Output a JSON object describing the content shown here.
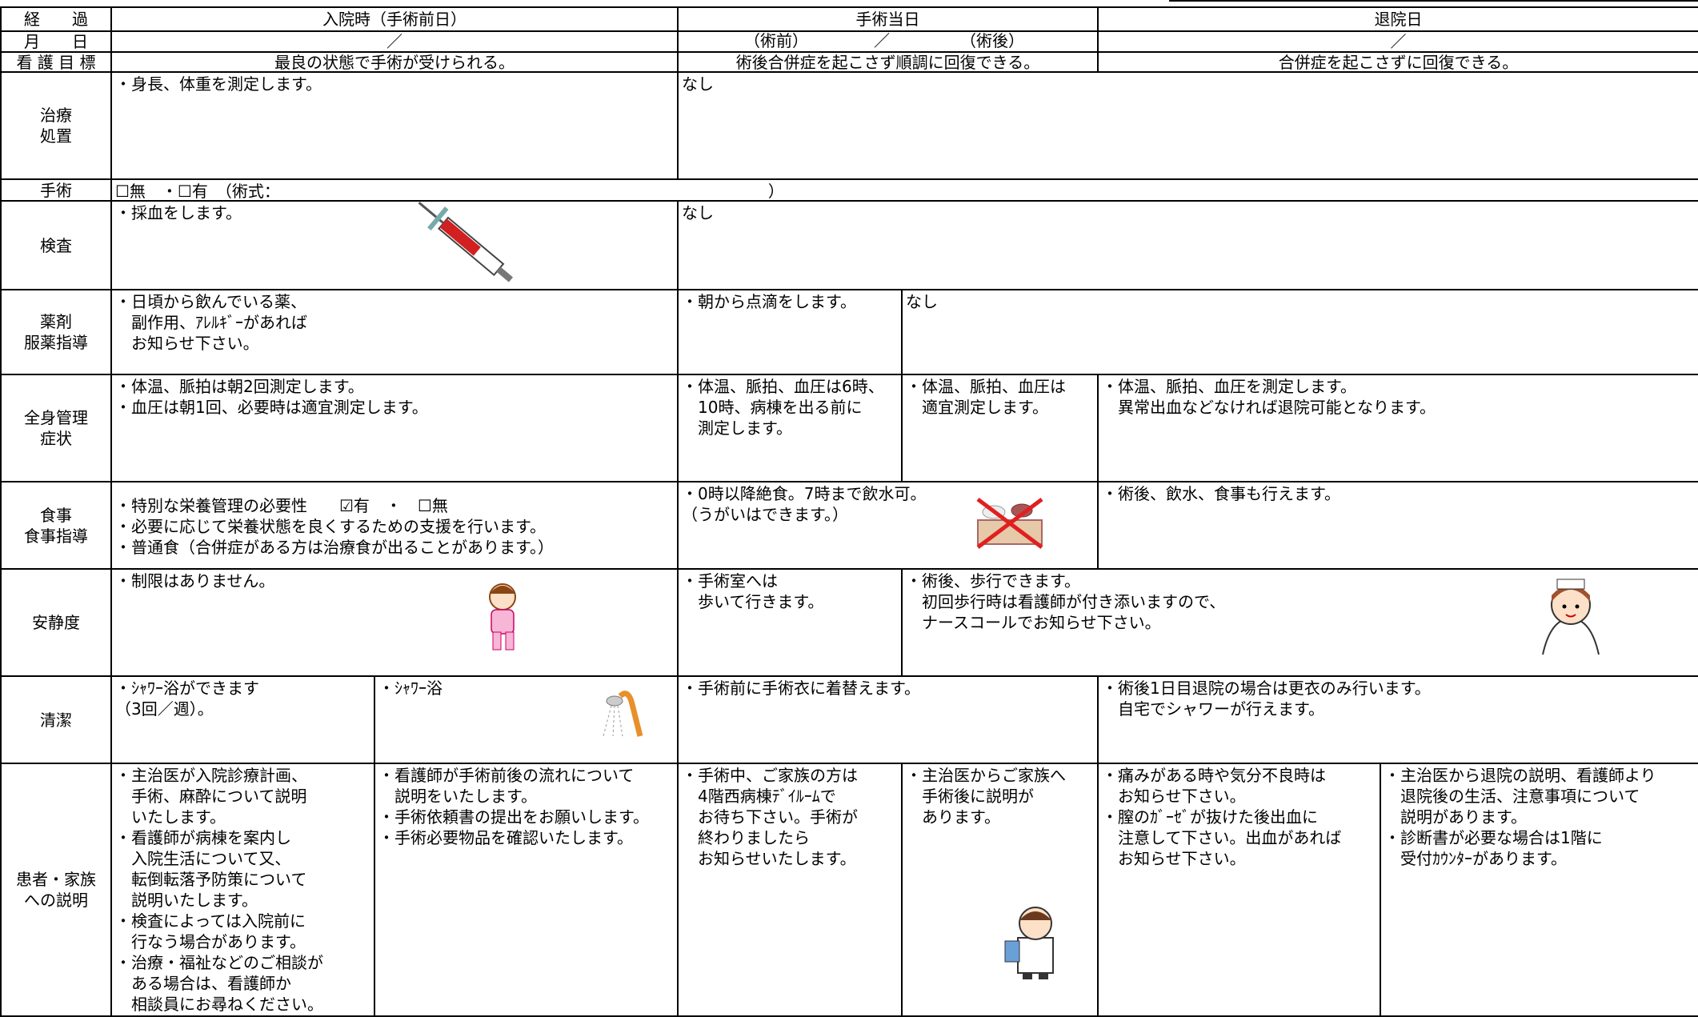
{
  "header": {
    "label": "経　　過",
    "admission": "入院時（手術前日）",
    "surgery_day": "手術当日",
    "discharge": "退院日"
  },
  "date_row": {
    "label": "月　　日",
    "admission": "／",
    "surgery_before": "（術前）",
    "slash": "／",
    "surgery_after": "（術後）",
    "discharge": "／"
  },
  "goal_row": {
    "label": "看 護 目 標",
    "admission": "最良の状態で手術が受けられる。",
    "surgery_day": "術後合併症を起こさず順調に回復できる。",
    "discharge": "合併症を起こさずに回復できる。"
  },
  "rows": [
    {
      "label": "治療\n処置",
      "cells": [
        "・身長、体重を測定します。",
        "なし"
      ]
    },
    {
      "label": "手術",
      "cells": [
        "☐無　・☐有　（術式：　　　　　　　　　　　　　　　　　　　　　　　　　　　　　　　）"
      ]
    },
    {
      "label": "検査",
      "cells": [
        "・採血をします。",
        "なし"
      ]
    },
    {
      "label": "薬剤\n服薬指導",
      "cells": [
        "・日頃から飲んでいる薬、\n　副作用、ｱﾚﾙｷﾞｰがあれば\n　お知らせ下さい。",
        "・朝から点滴をします。",
        "なし"
      ]
    },
    {
      "label": "全身管理\n症状",
      "cells": [
        "・体温、脈拍は朝2回測定します。\n・血圧は朝1回、必要時は適宜測定します。",
        "・体温、脈拍、血圧は6時、\n　10時、病棟を出る前に\n　測定します。",
        "・体温、脈拍、血圧は\n　適宜測定します。",
        "・体温、脈拍、血圧を測定します。\n　異常出血などなければ退院可能となります。"
      ]
    },
    {
      "label": "食事\n食事指導",
      "cells": [
        "・特別な栄養管理の必要性　　☑有　・　☐無\n・必要に応じて栄養状態を良くするための支援を行います。\n・普通食（合併症がある方は治療食が出ることがあります。）",
        "・0時以降絶食。7時まで飲水可。\n（うがいはできます。）",
        "・術後、飲水、食事も行えます。"
      ]
    },
    {
      "label": "安静度",
      "cells": [
        "・制限はありません。",
        "・手術室へは\n　歩いて行きます。",
        "・術後、歩行できます。\n　初回歩行時は看護師が付き添いますので、\n　ナースコールでお知らせ下さい。"
      ]
    },
    {
      "label": "清潔",
      "cells": [
        "・ｼｬﾜｰ浴ができます\n（3回／週）。",
        "・ｼｬﾜｰ浴",
        "・手術前に手術衣に着替えます。",
        "・術後1日目退院の場合は更衣のみ行います。\n　自宅でシャワーが行えます。"
      ]
    },
    {
      "label": "患者・家族\nへの説明",
      "cells": [
        "・主治医が入院診療計画、\n　手術、麻酔について説明\n　いたします。\n・看護師が病棟を案内し\n　入院生活について又、\n　転倒転落予防策について\n　説明いたします。\n・検査によっては入院前に\n　行なう場合があります。\n・治療・福祉などのご相談が\n　ある場合は、看護師か\n　相談員にお尋ねください。",
        "・看護師が手術前後の流れについて\n　説明をいたします。\n・手術依頼書の提出をお願いします。\n・手術必要物品を確認いたします。",
        "・手術中、ご家族の方は\n　4階西病棟ﾃﾞｲﾙｰﾑで\n　お待ち下さい。手術が\n　終わりましたら\n　お知らせいたします。",
        "・主治医からご家族へ\n　手術後に説明が\n　あります。",
        "・痛みがある時や気分不良時は\n　お知らせ下さい。\n・膣のｶﾞｰｾﾞが抜けた後出血に\n　注意して下さい。出血があれば\n　お知らせ下さい。",
        "・主治医から退院の説明、看護師より\n　退院後の生活、注意事項について\n　説明があります。\n・診断書が必要な場合は1階に\n　受付ｶｳﾝﾀｰがあります。"
      ]
    }
  ]
}
